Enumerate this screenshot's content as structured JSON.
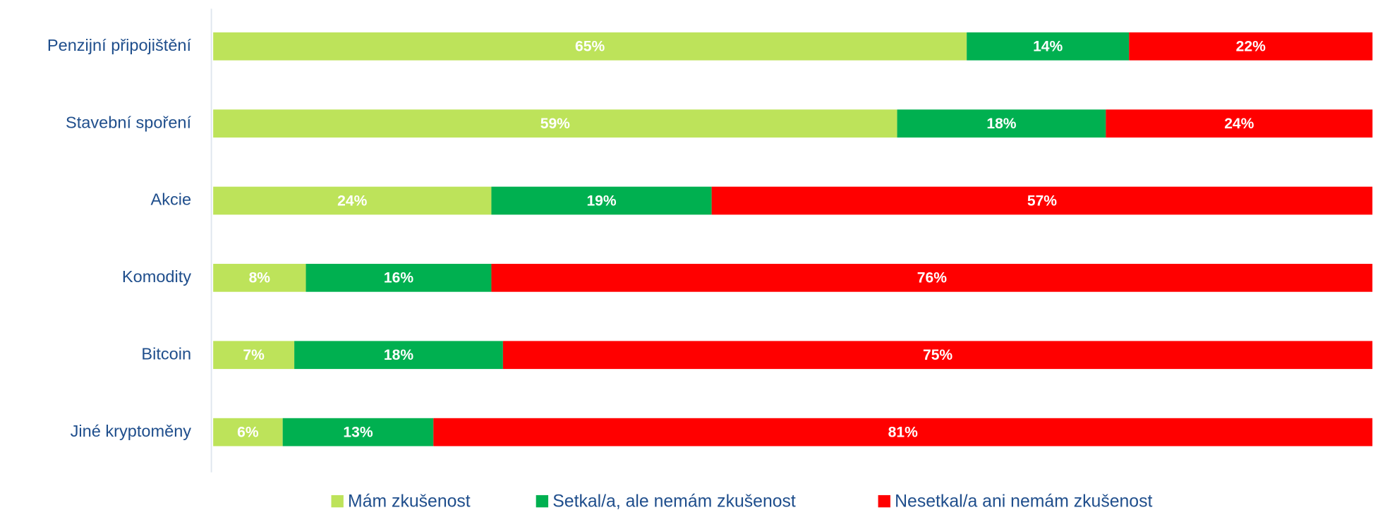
{
  "chart_data": {
    "type": "stacked_bar_horizontal",
    "categories": [
      "Penzijní připojištění",
      "Stavební spoření",
      "Akcie",
      "Komodity",
      "Bitcoin",
      "Jiné kryptoměny"
    ],
    "series": [
      {
        "name": "Mám zkušenost",
        "color": "#bde35a",
        "values": [
          65,
          59,
          24,
          8,
          7,
          6
        ],
        "value_labels": [
          "65%",
          "59%",
          "24%",
          "8%",
          "7%",
          "6%"
        ]
      },
      {
        "name": "Setkal/a, ale nemám zkušenost",
        "color": "#00b050",
        "values": [
          14,
          18,
          19,
          16,
          18,
          13
        ],
        "value_labels": [
          "14%",
          "18%",
          "19%",
          "16%",
          "18%",
          "13%"
        ]
      },
      {
        "name": "Nesetkal/a ani nemám zkušenost",
        "color": "#ff0000",
        "values": [
          22,
          24,
          57,
          76,
          75,
          81
        ],
        "value_labels": [
          "22%",
          "24%",
          "57%",
          "76%",
          "75%",
          "81%"
        ]
      }
    ],
    "xlim": [
      0,
      100
    ],
    "legend": "bottom"
  }
}
